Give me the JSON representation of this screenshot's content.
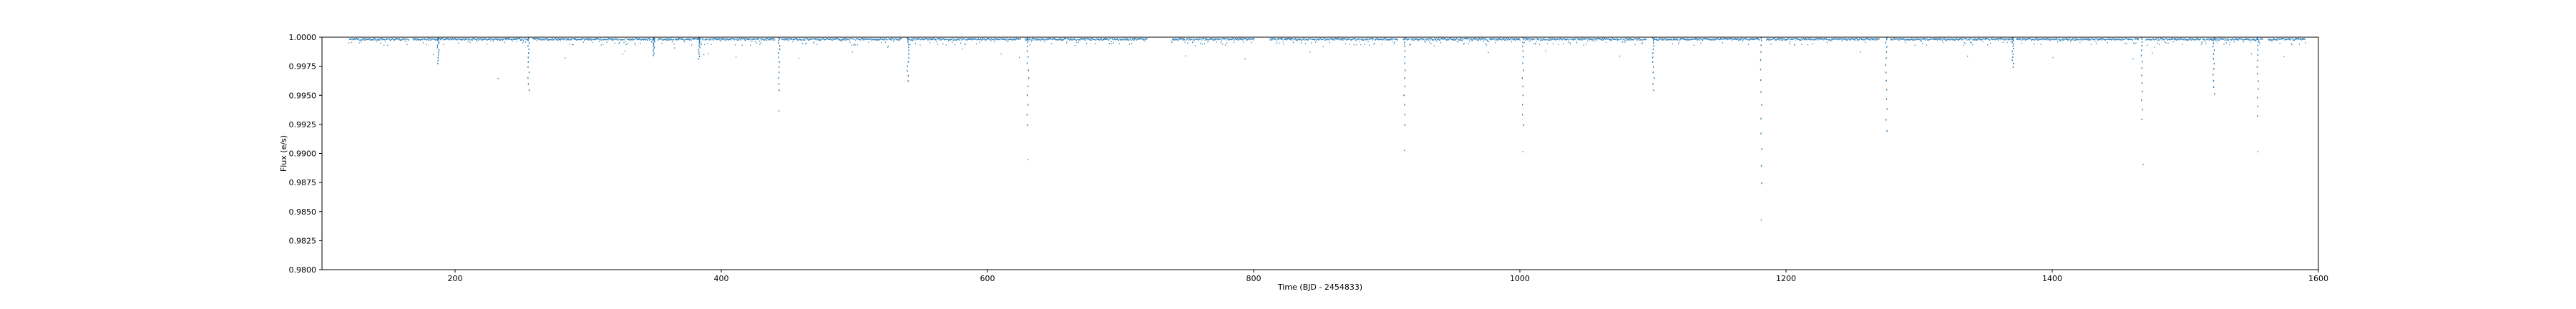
{
  "chart_data": {
    "type": "scatter",
    "title": "",
    "xlabel": "Time (BJD - 2454833)",
    "ylabel": "Flux (e/s)",
    "xlim": [
      100,
      1600
    ],
    "ylim": [
      0.98,
      1.0
    ],
    "xticks": [
      200,
      400,
      600,
      800,
      1000,
      1200,
      1400,
      1600
    ],
    "xtick_labels": [
      "200",
      "400",
      "600",
      "800",
      "1000",
      "1200",
      "1400",
      "1600"
    ],
    "yticks": [
      0.98,
      0.9825,
      0.985,
      0.9875,
      0.99,
      0.9925,
      0.995,
      0.9975,
      1.0
    ],
    "ytick_labels": [
      "0.9800",
      "0.9825",
      "0.9850",
      "0.9875",
      "0.9900",
      "0.9925",
      "0.9950",
      "0.9975",
      "1.0000"
    ],
    "grid": false,
    "marker_color": "#1f77b4",
    "baseline_flux": 0.99975,
    "observation_segments": [
      [
        120,
        165
      ],
      [
        168,
        255
      ],
      [
        258,
        350
      ],
      [
        352,
        440
      ],
      [
        445,
        535
      ],
      [
        540,
        625
      ],
      [
        628,
        720
      ],
      [
        738,
        800
      ],
      [
        812,
        908
      ],
      [
        912,
        1000
      ],
      [
        1003,
        1095
      ],
      [
        1100,
        1180
      ],
      [
        1185,
        1270
      ],
      [
        1278,
        1370
      ],
      [
        1373,
        1465
      ],
      [
        1470,
        1558
      ],
      [
        1562,
        1590
      ]
    ],
    "transit_dips": [
      {
        "x": 187,
        "min_flux": 0.9978
      },
      {
        "x": 255,
        "min_flux": 0.9955
      },
      {
        "x": 349,
        "min_flux": 0.9985
      },
      {
        "x": 383,
        "min_flux": 0.9982
      },
      {
        "x": 443,
        "min_flux": 0.9955
      },
      {
        "x": 540,
        "min_flux": 0.9963
      },
      {
        "x": 630,
        "min_flux": 0.9925
      },
      {
        "x": 913,
        "min_flux": 0.9925
      },
      {
        "x": 1002,
        "min_flux": 0.9925
      },
      {
        "x": 1100,
        "min_flux": 0.9955
      },
      {
        "x": 1181,
        "min_flux": 0.9875
      },
      {
        "x": 1275,
        "min_flux": 0.992
      },
      {
        "x": 1370,
        "min_flux": 0.9975
      },
      {
        "x": 1467,
        "min_flux": 0.993
      },
      {
        "x": 1521,
        "min_flux": 0.9952
      },
      {
        "x": 1554,
        "min_flux": 0.9933
      }
    ],
    "outliers": [
      {
        "x": 630,
        "flux": 0.9895
      },
      {
        "x": 913,
        "flux": 0.9903
      },
      {
        "x": 1002,
        "flux": 0.9902
      },
      {
        "x": 1181,
        "flux": 0.9843
      },
      {
        "x": 1468,
        "flux": 0.9891
      },
      {
        "x": 1554,
        "flux": 0.9902
      },
      {
        "x": 232,
        "flux": 0.9965
      },
      {
        "x": 443,
        "flux": 0.9937
      }
    ]
  }
}
